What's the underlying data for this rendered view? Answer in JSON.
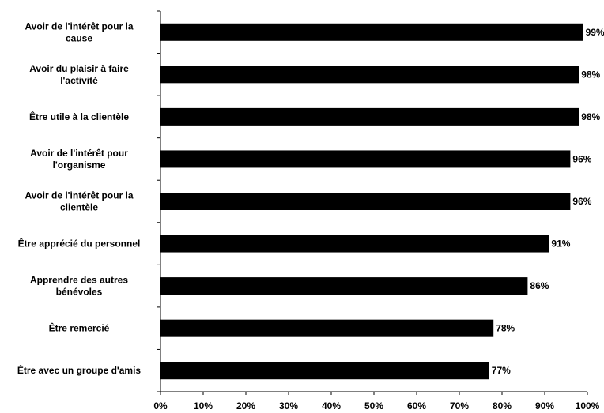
{
  "chart_data": {
    "type": "bar",
    "orientation": "horizontal",
    "title": "",
    "xlabel": "",
    "ylabel": "",
    "xlim": [
      0,
      100
    ],
    "grid": false,
    "legend": "none",
    "bar_color": "#000000",
    "x_ticks": [
      "0%",
      "10%",
      "20%",
      "30%",
      "40%",
      "50%",
      "60%",
      "70%",
      "80%",
      "90%",
      "100%"
    ],
    "categories": [
      [
        "Avoir de l'intérêt pour la",
        "cause"
      ],
      [
        "Avoir du plaisir à faire",
        "l'activité"
      ],
      [
        "Être utile à la clientèle"
      ],
      [
        "Avoir de l'intérêt pour",
        "l'organisme"
      ],
      [
        "Avoir de l'intérêt pour la",
        "clientèle"
      ],
      [
        "Être apprécié du personnel"
      ],
      [
        "Apprendre des autres",
        "bénévoles"
      ],
      [
        "Être remercié"
      ],
      [
        "Être avec un groupe d'amis"
      ]
    ],
    "values": [
      99,
      98,
      98,
      96,
      96,
      91,
      86,
      78,
      77
    ],
    "value_labels": [
      "99%",
      "98%",
      "98%",
      "96%",
      "96%",
      "91%",
      "86%",
      "78%",
      "77%"
    ]
  }
}
